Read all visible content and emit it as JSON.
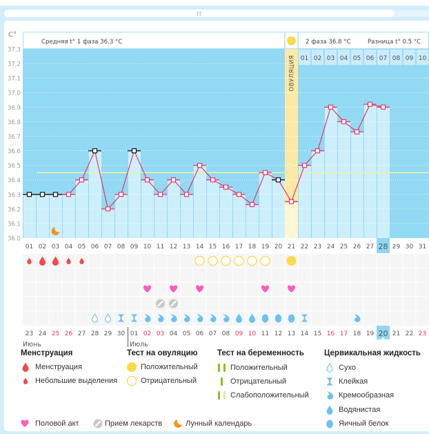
{
  "header": {
    "unit": "C°",
    "phase1_avg": "Средняя t° 1 фаза 36.3 °C",
    "phase2_avg": "2 фаза 36.8 °C",
    "difference": "Разница t° 0.5 °C",
    "ovulation_label": "ОВУЛЯЦИЯ"
  },
  "chart_data": {
    "type": "line",
    "title": "",
    "xlabel": "",
    "ylabel": "C°",
    "ylim": [
      36.0,
      37.3
    ],
    "grid": true,
    "yticks": [
      "37.3",
      "37.2",
      "37.1",
      "37.0",
      "36.9",
      "36.8",
      "36.7",
      "36.6",
      "36.5",
      "36.4",
      "36.3",
      "36.2",
      "36.1",
      "36.0"
    ],
    "ytick_values": [
      37.3,
      37.2,
      37.1,
      37.0,
      36.9,
      36.8,
      36.7,
      36.6,
      36.5,
      36.4,
      36.3,
      36.2,
      36.1,
      36.0
    ],
    "x": [
      "01",
      "02",
      "03",
      "04",
      "05",
      "06",
      "07",
      "08",
      "09",
      "10",
      "11",
      "12",
      "13",
      "14",
      "15",
      "16",
      "17",
      "18",
      "19",
      "20",
      "21",
      "22",
      "23",
      "24",
      "25",
      "26",
      "27",
      "28",
      "29",
      "30",
      "31"
    ],
    "temperatures": [
      36.3,
      36.3,
      36.3,
      36.3,
      36.4,
      36.6,
      36.2,
      36.3,
      36.6,
      36.4,
      36.3,
      36.4,
      36.3,
      36.5,
      36.4,
      36.35,
      36.3,
      36.23,
      36.45,
      36.4,
      36.25,
      36.5,
      36.6,
      36.9,
      36.8,
      36.73,
      36.92,
      36.9,
      null,
      null,
      null
    ],
    "excluded_days": [
      1,
      2,
      3,
      6,
      9,
      20
    ],
    "cover_line": 36.45,
    "ovulation_day": 21,
    "current_day": 28,
    "phase2_day_labels": [
      "01",
      "02",
      "03",
      "04",
      "05",
      "06",
      "07",
      "08",
      "09",
      "10"
    ]
  },
  "calendar": {
    "dates": [
      "23",
      "24",
      "25",
      "26",
      "27",
      "28",
      "29",
      "30",
      "01",
      "02",
      "03",
      "04",
      "05",
      "06",
      "07",
      "08",
      "09",
      "10",
      "11",
      "12",
      "13",
      "14",
      "15",
      "16",
      "17",
      "18",
      "19",
      "20",
      "21",
      "22",
      "23"
    ],
    "weekend_days": [
      3,
      4,
      10,
      11,
      17,
      18,
      24,
      25,
      31
    ],
    "months": [
      {
        "label": "Июнь",
        "start_day": 1
      },
      {
        "label": "Июль",
        "start_day": 9
      }
    ],
    "today_day": 28
  },
  "observations": {
    "menstruation": [
      {
        "day": 1,
        "type": "spotting"
      },
      {
        "day": 2,
        "type": "menstruation"
      },
      {
        "day": 3,
        "type": "menstruation"
      },
      {
        "day": 4,
        "type": "spotting"
      },
      {
        "day": 5,
        "type": "spotting"
      }
    ],
    "ovulation_tests": [
      {
        "day": 14,
        "result": "negative"
      },
      {
        "day": 15,
        "result": "negative"
      },
      {
        "day": 16,
        "result": "negative"
      },
      {
        "day": 17,
        "result": "negative"
      },
      {
        "day": 18,
        "result": "negative"
      },
      {
        "day": 19,
        "result": "negative"
      },
      {
        "day": 21,
        "result": "positive"
      }
    ],
    "pregnancy_tests": [],
    "intercourse_days": [
      10,
      12,
      14,
      19,
      21
    ],
    "medication_days": [
      11,
      12
    ],
    "cervical_fluid": [
      {
        "day": 6,
        "type": "dry"
      },
      {
        "day": 7,
        "type": "dry"
      },
      {
        "day": 8,
        "type": "sticky"
      },
      {
        "day": 9,
        "type": "sticky"
      },
      {
        "day": 10,
        "type": "creamy"
      },
      {
        "day": 11,
        "type": "creamy"
      },
      {
        "day": 12,
        "type": "creamy"
      },
      {
        "day": 13,
        "type": "creamy"
      },
      {
        "day": 14,
        "type": "creamy"
      },
      {
        "day": 15,
        "type": "creamy"
      },
      {
        "day": 16,
        "type": "creamy"
      },
      {
        "day": 17,
        "type": "watery"
      },
      {
        "day": 18,
        "type": "watery"
      },
      {
        "day": 19,
        "type": "egg_white"
      },
      {
        "day": 20,
        "type": "egg_white"
      },
      {
        "day": 21,
        "type": "egg_white"
      },
      {
        "day": 22,
        "type": "sticky"
      },
      {
        "day": 26,
        "type": "creamy"
      }
    ],
    "lunar_days": [
      3
    ]
  },
  "legend": {
    "menstruation": {
      "title": "Менструация",
      "items": [
        {
          "label": "Менструация"
        },
        {
          "label": "Небольшие выделения"
        }
      ]
    },
    "ovulation_test": {
      "title": "Тест на овуляцию",
      "items": [
        {
          "label": "Положительный"
        },
        {
          "label": "Отрицательный"
        }
      ]
    },
    "pregnancy_test": {
      "title": "Тест на беременность",
      "items": [
        {
          "label": "Положительный"
        },
        {
          "label": "Отрицательный"
        },
        {
          "label": "Слабоположительный"
        }
      ]
    },
    "cervical_fluid": {
      "title": "Цервикальная жидкость",
      "items": [
        {
          "label": "Сухо"
        },
        {
          "label": "Клейкая"
        },
        {
          "label": "Кремообразная"
        },
        {
          "label": "Водянистая"
        },
        {
          "label": "Яичный белок"
        }
      ]
    },
    "other": [
      {
        "label": "Половой акт"
      },
      {
        "label": "Прием лекарств"
      },
      {
        "label": "Лунный календарь"
      }
    ]
  },
  "colors": {
    "temperature_line": "#e9346a",
    "excluded_marker": "#111111",
    "chart_bg": "#92d9f3",
    "bar": "#cdeffb",
    "ovulation": "#fde9a6",
    "ovulation_light": "#fef6d4",
    "cover_line": "#f2eea4",
    "weekend": "#e8305f",
    "menstruation": "#f24a4a",
    "ovulation_test": "#fdd94b",
    "intercourse": "#ff5dbb",
    "medication": "#c9c9c9",
    "lunar": "#f39519",
    "cervical": "#6cc2ee",
    "pregnancy_test": "#8dbf1f",
    "pregnancy_test_weak": "#d9e9ad",
    "highlight": "#8fd7f2"
  }
}
